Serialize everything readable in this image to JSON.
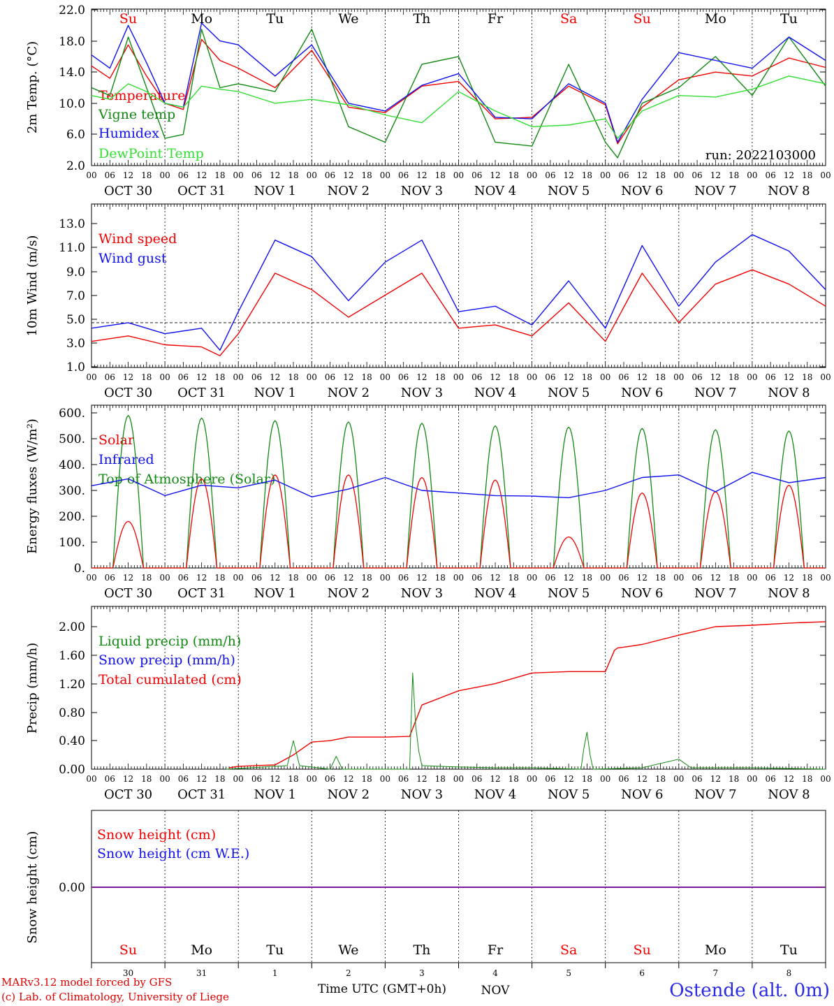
{
  "run_label": "run: 2022103000",
  "colors": {
    "red": "#ee0000",
    "green": "#118811",
    "blue": "#1010ee",
    "lightgreen": "#33dd33",
    "purple": "#7a1a9a",
    "grey": "#555555"
  },
  "x_axis": {
    "hour_ticks": [
      "00",
      "06",
      "12",
      "18"
    ],
    "date_labels": [
      "OCT 30",
      "OCT 31",
      "NOV  1",
      "NOV  2",
      "NOV  3",
      "NOV  4",
      "NOV  5",
      "NOV  6",
      "NOV  7",
      "NOV  8"
    ],
    "weekdays": [
      "Su",
      "Mo",
      "Tu",
      "We",
      "Th",
      "Fr",
      "Sa",
      "Su",
      "Mo",
      "Tu"
    ],
    "weekday_colors": [
      "#ee0000",
      "#000000",
      "#000000",
      "#000000",
      "#000000",
      "#000000",
      "#ee0000",
      "#ee0000",
      "#000000",
      "#000000"
    ],
    "day_numbers": [
      "30",
      "31",
      "1",
      "2",
      "3",
      "4",
      "5",
      "6",
      "7",
      "8"
    ],
    "month_label": "NOV",
    "title": "Time UTC (GMT+0h)"
  },
  "footer": {
    "model": "MARv3.12 model forced by GFS",
    "credit": "(c) Lab. of Climatology, University of Liege",
    "station": "Ostende (alt. 0m)"
  },
  "chart_data": [
    {
      "type": "line",
      "ylabel": "2m Temp. (°C)",
      "ylim": [
        2,
        22
      ],
      "yticks": [
        "2.0",
        "6.0",
        "10.0",
        "14.0",
        "18.0",
        "22.0"
      ],
      "x_unit": "hours since Oct 30 00 UTC",
      "legend": [
        "Temperature",
        "Vigne temp",
        "Humidex",
        "DewPoint Temp"
      ],
      "series": [
        {
          "name": "Temperature",
          "color": "#ee0000",
          "x": [
            0,
            6,
            12,
            18,
            24,
            30,
            36,
            42,
            48,
            60,
            72,
            84,
            96,
            108,
            120,
            132,
            144,
            156,
            168,
            172,
            180,
            192,
            204,
            216,
            228,
            240
          ],
          "y": [
            14.8,
            13.2,
            17.5,
            13.5,
            10.0,
            9.2,
            18.2,
            15.5,
            14.5,
            12.0,
            16.8,
            9.5,
            8.8,
            12.2,
            12.8,
            8.0,
            8.2,
            12.2,
            9.8,
            4.8,
            9.5,
            13.0,
            14.0,
            13.5,
            15.8,
            14.6
          ]
        },
        {
          "name": "Vigne temp",
          "color": "#118811",
          "x": [
            0,
            6,
            12,
            18,
            24,
            30,
            36,
            42,
            48,
            60,
            72,
            84,
            96,
            108,
            120,
            132,
            144,
            156,
            168,
            172,
            180,
            192,
            204,
            216,
            228,
            240
          ],
          "y": [
            12.0,
            11.0,
            18.5,
            12.0,
            5.5,
            6.0,
            19.5,
            12.0,
            12.5,
            11.5,
            19.5,
            7.0,
            5.0,
            15.0,
            16.0,
            5.0,
            4.5,
            15.0,
            5.0,
            3.0,
            10.0,
            12.0,
            16.0,
            11.0,
            18.5,
            12.2
          ]
        },
        {
          "name": "Humidex",
          "color": "#1010ee",
          "x": [
            0,
            6,
            12,
            18,
            24,
            30,
            36,
            42,
            48,
            60,
            72,
            84,
            96,
            108,
            120,
            132,
            144,
            156,
            168,
            172,
            180,
            192,
            204,
            216,
            228,
            240
          ],
          "y": [
            16.2,
            14.5,
            20.0,
            15.2,
            10.0,
            9.5,
            20.3,
            18.0,
            17.5,
            13.5,
            17.5,
            10.0,
            9.0,
            12.3,
            13.8,
            8.2,
            8.0,
            12.5,
            10.0,
            5.0,
            10.5,
            16.5,
            15.5,
            14.5,
            18.5,
            15.5
          ]
        },
        {
          "name": "DewPoint Temp",
          "color": "#33dd33",
          "x": [
            0,
            6,
            12,
            18,
            24,
            30,
            36,
            42,
            48,
            60,
            72,
            84,
            96,
            108,
            120,
            132,
            144,
            156,
            168,
            172,
            180,
            192,
            204,
            216,
            228,
            240
          ],
          "y": [
            11.0,
            10.5,
            12.5,
            11.5,
            10.0,
            9.5,
            12.2,
            11.8,
            11.5,
            10.0,
            10.5,
            9.8,
            8.5,
            7.5,
            11.5,
            9.0,
            7.0,
            7.2,
            8.0,
            5.5,
            9.0,
            11.0,
            10.8,
            11.8,
            13.5,
            12.5
          ]
        }
      ]
    },
    {
      "type": "line",
      "ylabel": "10m Wind (m/s)",
      "ylim": [
        1,
        14
      ],
      "yticks": [
        "1.0",
        "3.0",
        "5.0",
        "7.0",
        "9.0",
        "11.0",
        "13.0"
      ],
      "legend": [
        "Wind speed",
        "Wind gust"
      ],
      "reference_line": 5.0,
      "series": [
        {
          "name": "Wind speed",
          "color": "#ee0000",
          "x": [
            0,
            12,
            24,
            36,
            42,
            48,
            60,
            72,
            84,
            96,
            108,
            120,
            132,
            144,
            156,
            168,
            180,
            192,
            204,
            216,
            228,
            240
          ],
          "y": [
            3.3,
            3.8,
            3.0,
            2.8,
            2.0,
            4.0,
            9.5,
            8.0,
            5.5,
            7.5,
            9.5,
            4.5,
            4.8,
            3.8,
            6.8,
            3.3,
            9.5,
            5.0,
            8.5,
            9.8,
            8.5,
            6.5
          ]
        },
        {
          "name": "Wind gust",
          "color": "#1010ee",
          "x": [
            0,
            12,
            24,
            36,
            42,
            48,
            60,
            72,
            84,
            96,
            108,
            120,
            132,
            144,
            156,
            168,
            180,
            192,
            204,
            216,
            228,
            240
          ],
          "y": [
            4.5,
            5.0,
            4.0,
            4.5,
            2.5,
            6.0,
            12.5,
            11.0,
            7.0,
            10.5,
            12.5,
            6.0,
            6.5,
            4.8,
            8.8,
            4.5,
            12.0,
            6.5,
            10.5,
            13.0,
            11.5,
            8.0
          ]
        }
      ]
    },
    {
      "type": "line",
      "ylabel": "Energy fluxes (W/m²)",
      "ylim": [
        0,
        600
      ],
      "yticks": [
        "0.",
        "100.",
        "200.",
        "300.",
        "400.",
        "500.",
        "600."
      ],
      "legend": [
        "Solar",
        "Infrared",
        "Top of Atmosphere (Solar)"
      ],
      "daily_toa_peak": [
        590,
        580,
        570,
        565,
        560,
        550,
        545,
        540,
        535,
        530
      ],
      "daily_solar_peak": [
        180,
        345,
        360,
        360,
        350,
        340,
        120,
        290,
        295,
        320
      ],
      "series": [
        {
          "name": "Infrared",
          "color": "#1010ee",
          "x": [
            0,
            12,
            24,
            36,
            48,
            60,
            72,
            84,
            96,
            108,
            120,
            132,
            144,
            156,
            168,
            180,
            192,
            204,
            216,
            228,
            240
          ],
          "y": [
            318,
            345,
            280,
            320,
            310,
            340,
            275,
            305,
            350,
            300,
            290,
            280,
            278,
            272,
            300,
            350,
            360,
            295,
            370,
            330,
            350
          ]
        }
      ]
    },
    {
      "type": "line",
      "ylabel": "Precip (mm/h)",
      "ylim": [
        0,
        2.2
      ],
      "yticks": [
        "0.00",
        "0.40",
        "0.80",
        "1.20",
        "1.60",
        "2.00"
      ],
      "legend": [
        "Liquid precip (mm/h)",
        "Snow precip (mm/h)",
        "Total cumulated (cm)"
      ],
      "series": [
        {
          "name": "Total cumulated (cm)",
          "color": "#ee0000",
          "x": [
            45,
            48,
            60,
            66,
            72,
            78,
            84,
            96,
            104,
            108,
            120,
            132,
            144,
            156,
            168,
            171,
            172,
            180,
            192,
            204,
            216,
            228,
            240
          ],
          "y": [
            0.02,
            0.04,
            0.06,
            0.2,
            0.38,
            0.4,
            0.45,
            0.45,
            0.46,
            0.9,
            1.1,
            1.2,
            1.35,
            1.37,
            1.37,
            1.67,
            1.7,
            1.75,
            1.88,
            2.0,
            2.02,
            2.05,
            2.07
          ]
        },
        {
          "name": "Liquid precip (mm/h)",
          "color": "#118811",
          "x": [
            44,
            64,
            66,
            68,
            78,
            80,
            82,
            104,
            105,
            106,
            107,
            108,
            120,
            132,
            144,
            160,
            161,
            162,
            163,
            164,
            180,
            192,
            196,
            216,
            240
          ],
          "y": [
            0.0,
            0.05,
            0.4,
            0.05,
            0.0,
            0.18,
            0.0,
            0.0,
            1.35,
            0.6,
            0.25,
            0.05,
            0.03,
            0.02,
            0.02,
            0.0,
            0.3,
            0.52,
            0.2,
            0.0,
            0.02,
            0.14,
            0.02,
            0.02,
            0.0
          ]
        }
      ]
    },
    {
      "type": "line",
      "ylabel": "Snow height (cm)",
      "yticks": [
        "0.00"
      ],
      "legend": [
        "Snow height (cm)",
        "Snow height (cm W.E.)"
      ],
      "series": [
        {
          "name": "Snow height (cm)",
          "color": "#ee0000",
          "x": [
            0,
            240
          ],
          "y": [
            0,
            0
          ]
        },
        {
          "name": "Snow height (cm W.E.)",
          "color": "#1010ee",
          "x": [
            0,
            240
          ],
          "y": [
            0,
            0
          ]
        }
      ]
    }
  ]
}
